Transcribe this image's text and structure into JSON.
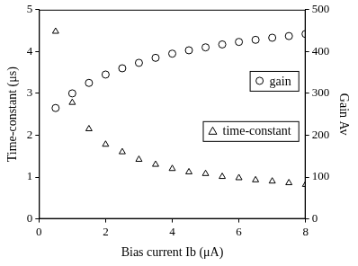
{
  "chart_data": {
    "type": "scatter",
    "x_label": "Bias current Ib (μA)",
    "y_label": "Time-constant (μs)",
    "y2_label": "Gain Av",
    "x": [
      0.5,
      1,
      1.5,
      2,
      2.5,
      3,
      3.5,
      4,
      4.5,
      5,
      5.5,
      6,
      6.5,
      7,
      7.5,
      8
    ],
    "series": [
      {
        "name": "gain",
        "color": "#000000",
        "marker": "circle",
        "axis": "y2",
        "values": [
          265,
          300,
          325,
          345,
          360,
          373,
          385,
          395,
          403,
          410,
          417,
          423,
          428,
          433,
          437,
          442
        ]
      },
      {
        "name": "time-constant",
        "color": "#000000",
        "marker": "triangle",
        "axis": "y",
        "values": [
          4.48,
          2.78,
          2.15,
          1.78,
          1.6,
          1.42,
          1.3,
          1.2,
          1.12,
          1.08,
          1.01,
          0.98,
          0.93,
          0.9,
          0.86,
          0.82
        ]
      }
    ],
    "xlim": [
      0,
      8
    ],
    "xticks": [
      0,
      2,
      4,
      6,
      8
    ],
    "ylim": [
      0,
      5
    ],
    "yticks": [
      0,
      1,
      2,
      3,
      4,
      5
    ],
    "y2lim": [
      0,
      500
    ],
    "y2ticks": [
      0,
      100,
      200,
      300,
      400,
      500
    ],
    "grid": false,
    "legend": "right"
  }
}
